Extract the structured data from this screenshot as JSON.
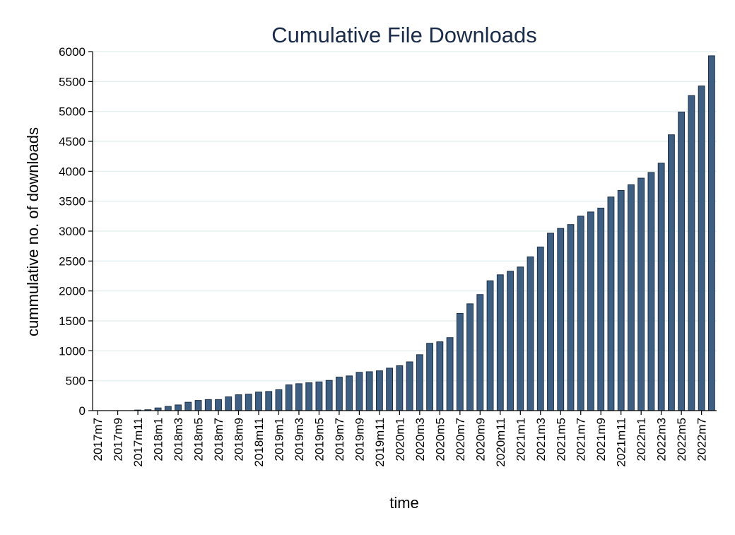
{
  "chart_data": {
    "type": "bar",
    "title": "Cumulative File Downloads",
    "xlabel": "time",
    "ylabel": "cummulative no. of downloads",
    "ylim": [
      0,
      6000
    ],
    "yticks": [
      0,
      500,
      1000,
      1500,
      2000,
      2500,
      3000,
      3500,
      4000,
      4500,
      5000,
      5500,
      6000
    ],
    "grid": true,
    "bar_color": "#3e5f82",
    "bar_edge_color": "#1c2f45",
    "categories": [
      "2017m7",
      "2017m8",
      "2017m9",
      "2017m10",
      "2017m11",
      "2017m12",
      "2018m1",
      "2018m2",
      "2018m3",
      "2018m4",
      "2018m5",
      "2018m6",
      "2018m7",
      "2018m8",
      "2018m9",
      "2018m10",
      "2018m11",
      "2018m12",
      "2019m1",
      "2019m2",
      "2019m3",
      "2019m4",
      "2019m5",
      "2019m6",
      "2019m7",
      "2019m8",
      "2019m9",
      "2019m10",
      "2019m11",
      "2019m12",
      "2020m1",
      "2020m2",
      "2020m3",
      "2020m4",
      "2020m5",
      "2020m6",
      "2020m7",
      "2020m8",
      "2020m9",
      "2020m10",
      "2020m11",
      "2020m12",
      "2021m1",
      "2021m2",
      "2021m3",
      "2021m4",
      "2021m5",
      "2021m6",
      "2021m7",
      "2021m8",
      "2021m9",
      "2021m10",
      "2021m11",
      "2021m12",
      "2022m1",
      "2022m2",
      "2022m3",
      "2022m4",
      "2022m5",
      "2022m6",
      "2022m7",
      "2022m8"
    ],
    "xtick_labels": [
      "2017m7",
      "2017m9",
      "2017m11",
      "2018m1",
      "2018m3",
      "2018m5",
      "2018m7",
      "2018m9",
      "2018m11",
      "2019m1",
      "2019m3",
      "2019m5",
      "2019m7",
      "2019m9",
      "2019m11",
      "2020m1",
      "2020m3",
      "2020m5",
      "2020m7",
      "2020m9",
      "2020m11",
      "2021m1",
      "2021m3",
      "2021m5",
      "2021m7",
      "2021m9",
      "2021m11",
      "2022m1",
      "2022m3",
      "2022m5",
      "2022m7"
    ],
    "values": [
      0,
      0,
      0,
      0,
      10,
      15,
      45,
      70,
      95,
      140,
      170,
      185,
      185,
      230,
      265,
      275,
      310,
      320,
      350,
      430,
      450,
      465,
      480,
      505,
      560,
      580,
      640,
      650,
      665,
      710,
      750,
      815,
      935,
      1125,
      1150,
      1220,
      1625,
      1785,
      1940,
      2170,
      2270,
      2330,
      2400,
      2570,
      2735,
      2965,
      3045,
      3110,
      3250,
      3320,
      3385,
      3570,
      3680,
      3775,
      3885,
      3980,
      4135,
      4610,
      4990,
      5265,
      5425,
      5930
    ]
  }
}
